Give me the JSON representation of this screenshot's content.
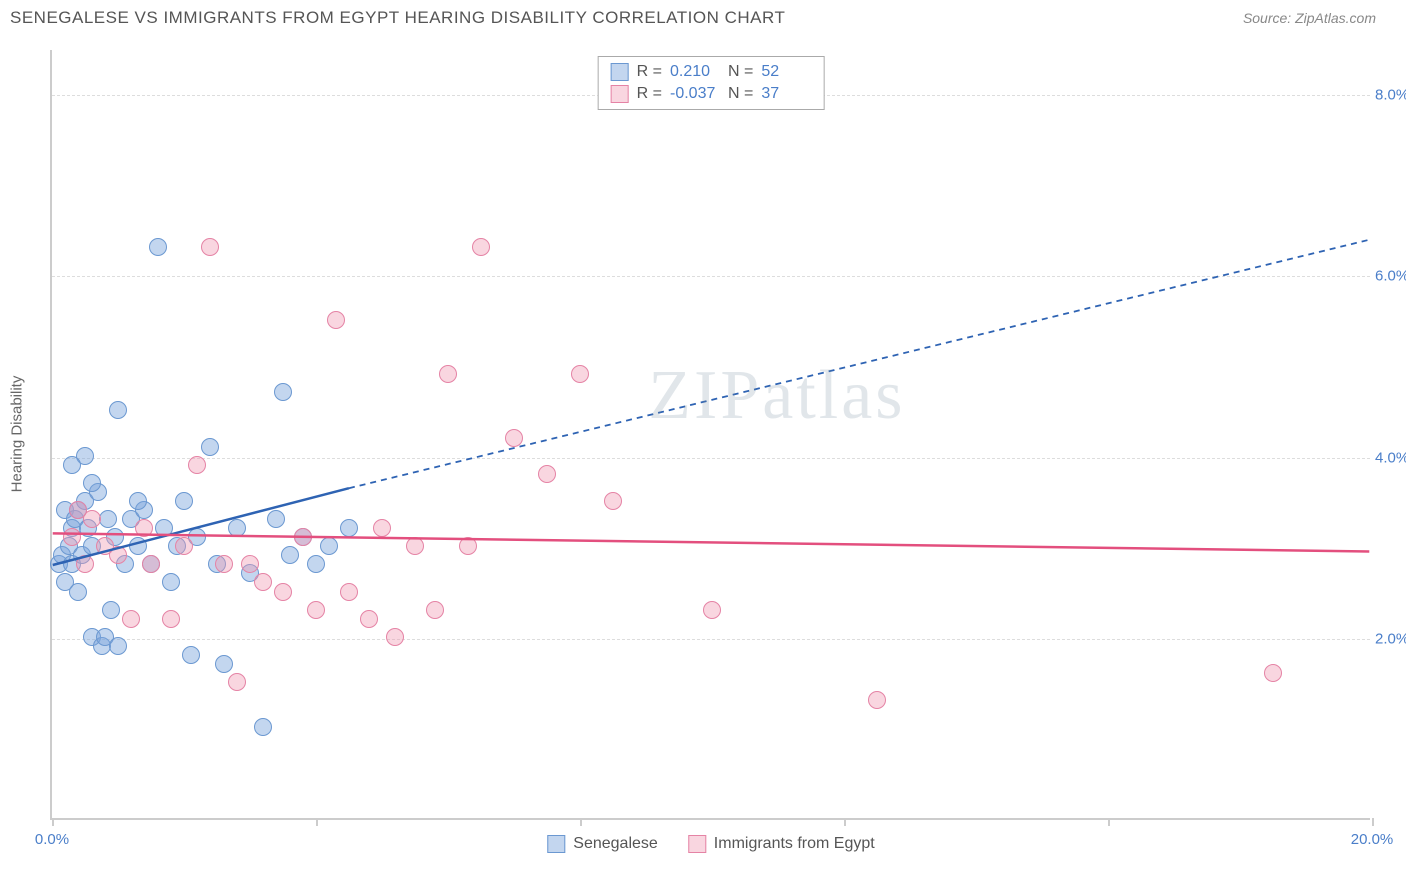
{
  "title": "SENEGALESE VS IMMIGRANTS FROM EGYPT HEARING DISABILITY CORRELATION CHART",
  "source": "Source: ZipAtlas.com",
  "watermark": "ZIPatlas",
  "y_axis_label": "Hearing Disability",
  "chart": {
    "type": "scatter",
    "xlim": [
      0,
      20
    ],
    "ylim": [
      0,
      8.5
    ],
    "x_ticks": [
      0,
      4,
      8,
      12,
      16,
      20
    ],
    "x_tick_labels": [
      "0.0%",
      "",
      "",
      "",
      "",
      "20.0%"
    ],
    "y_ticks": [
      2,
      4,
      6,
      8
    ],
    "y_tick_labels": [
      "2.0%",
      "4.0%",
      "6.0%",
      "8.0%"
    ],
    "grid_color": "#dddddd",
    "axis_color": "#cccccc",
    "tick_label_color": "#4a7ec9",
    "background_color": "#ffffff",
    "point_radius": 9,
    "series": [
      {
        "name": "Senegalese",
        "fill": "rgba(122,163,219,0.45)",
        "stroke": "#6b98d1",
        "trend_color": "#2e63b3",
        "r_value": "0.210",
        "n_value": "52",
        "points": [
          [
            0.1,
            2.8
          ],
          [
            0.15,
            2.9
          ],
          [
            0.2,
            3.4
          ],
          [
            0.2,
            2.6
          ],
          [
            0.25,
            3.0
          ],
          [
            0.3,
            3.2
          ],
          [
            0.3,
            2.8
          ],
          [
            0.35,
            3.3
          ],
          [
            0.4,
            3.4
          ],
          [
            0.4,
            2.5
          ],
          [
            0.45,
            2.9
          ],
          [
            0.5,
            4.0
          ],
          [
            0.5,
            3.5
          ],
          [
            0.55,
            3.2
          ],
          [
            0.6,
            2.0
          ],
          [
            0.6,
            3.0
          ],
          [
            0.7,
            3.6
          ],
          [
            0.75,
            1.9
          ],
          [
            0.8,
            2.0
          ],
          [
            0.85,
            3.3
          ],
          [
            0.9,
            2.3
          ],
          [
            0.95,
            3.1
          ],
          [
            1.0,
            1.9
          ],
          [
            1.0,
            4.5
          ],
          [
            1.1,
            2.8
          ],
          [
            1.2,
            3.3
          ],
          [
            1.3,
            3.0
          ],
          [
            1.4,
            3.4
          ],
          [
            1.5,
            2.8
          ],
          [
            1.6,
            6.3
          ],
          [
            1.7,
            3.2
          ],
          [
            1.8,
            2.6
          ],
          [
            1.9,
            3.0
          ],
          [
            2.0,
            3.5
          ],
          [
            2.2,
            3.1
          ],
          [
            2.4,
            4.1
          ],
          [
            2.5,
            2.8
          ],
          [
            2.6,
            1.7
          ],
          [
            2.8,
            3.2
          ],
          [
            3.0,
            2.7
          ],
          [
            3.2,
            1.0
          ],
          [
            3.4,
            3.3
          ],
          [
            3.5,
            4.7
          ],
          [
            3.6,
            2.9
          ],
          [
            3.8,
            3.1
          ],
          [
            4.0,
            2.8
          ],
          [
            4.2,
            3.0
          ],
          [
            4.5,
            3.2
          ],
          [
            1.3,
            3.5
          ],
          [
            0.6,
            3.7
          ],
          [
            0.3,
            3.9
          ],
          [
            2.1,
            1.8
          ]
        ],
        "trend": {
          "x0": 0,
          "y0": 2.8,
          "x1_solid": 4.5,
          "y1_solid": 3.65,
          "x1_dash": 20,
          "y1_dash": 6.4
        }
      },
      {
        "name": "Immigrants from Egypt",
        "fill": "rgba(239,152,178,0.40)",
        "stroke": "#e583a5",
        "trend_color": "#e34f7e",
        "r_value": "-0.037",
        "n_value": "37",
        "points": [
          [
            0.3,
            3.1
          ],
          [
            0.5,
            2.8
          ],
          [
            0.6,
            3.3
          ],
          [
            0.8,
            3.0
          ],
          [
            1.0,
            2.9
          ],
          [
            1.2,
            2.2
          ],
          [
            1.4,
            3.2
          ],
          [
            1.5,
            2.8
          ],
          [
            1.8,
            2.2
          ],
          [
            2.0,
            3.0
          ],
          [
            2.2,
            3.9
          ],
          [
            2.4,
            6.3
          ],
          [
            2.6,
            2.8
          ],
          [
            2.8,
            1.5
          ],
          [
            3.0,
            2.8
          ],
          [
            3.2,
            2.6
          ],
          [
            3.5,
            2.5
          ],
          [
            3.8,
            3.1
          ],
          [
            4.0,
            2.3
          ],
          [
            4.3,
            5.5
          ],
          [
            4.5,
            2.5
          ],
          [
            4.8,
            2.2
          ],
          [
            5.0,
            3.2
          ],
          [
            5.2,
            2.0
          ],
          [
            5.5,
            3.0
          ],
          [
            5.8,
            2.3
          ],
          [
            6.0,
            4.9
          ],
          [
            6.3,
            3.0
          ],
          [
            6.5,
            6.3
          ],
          [
            7.0,
            4.2
          ],
          [
            7.5,
            3.8
          ],
          [
            8.0,
            4.9
          ],
          [
            8.5,
            3.5
          ],
          [
            10.0,
            2.3
          ],
          [
            12.5,
            1.3
          ],
          [
            18.5,
            1.6
          ],
          [
            0.4,
            3.4
          ]
        ],
        "trend": {
          "x0": 0,
          "y0": 3.15,
          "x1_solid": 20,
          "y1_solid": 2.95,
          "x1_dash": 20,
          "y1_dash": 2.95
        }
      }
    ]
  },
  "top_legend": {
    "r_label": "R =",
    "n_label": "N ="
  },
  "bottom_legend": {
    "items": [
      "Senegalese",
      "Immigrants from Egypt"
    ]
  }
}
